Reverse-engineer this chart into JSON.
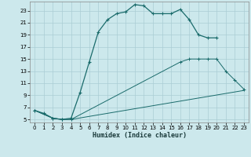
{
  "xlabel": "Humidex (Indice chaleur)",
  "background_color": "#cce8ec",
  "grid_color": "#aacdd4",
  "line_color": "#1a6b6b",
  "xlim": [
    -0.5,
    23.5
  ],
  "ylim": [
    4.5,
    24.5
  ],
  "yticks": [
    5,
    7,
    9,
    11,
    13,
    15,
    17,
    19,
    21,
    23
  ],
  "xticks": [
    0,
    1,
    2,
    3,
    4,
    5,
    6,
    7,
    8,
    9,
    10,
    11,
    12,
    13,
    14,
    15,
    16,
    17,
    18,
    19,
    20,
    21,
    22,
    23
  ],
  "lines": [
    {
      "x": [
        0,
        1,
        2,
        3,
        4,
        5,
        6,
        7,
        8,
        9,
        10,
        11,
        12,
        13,
        14,
        15,
        16,
        17,
        18,
        19,
        20
      ],
      "y": [
        6.5,
        6.0,
        5.2,
        5.0,
        5.2,
        9.5,
        14.5,
        19.5,
        21.5,
        22.5,
        22.8,
        24.0,
        23.8,
        22.5,
        22.5,
        22.5,
        23.2,
        21.5,
        19.0,
        18.5,
        18.5
      ]
    },
    {
      "x": [
        0,
        2,
        3,
        4,
        16,
        17,
        18,
        19,
        20,
        21,
        22,
        23
      ],
      "y": [
        6.5,
        5.2,
        5.0,
        5.0,
        14.5,
        15.0,
        15.0,
        15.0,
        15.0,
        13.0,
        11.5,
        10.0
      ]
    },
    {
      "x": [
        0,
        2,
        3,
        4,
        23
      ],
      "y": [
        6.5,
        5.2,
        5.0,
        5.0,
        9.8
      ]
    }
  ]
}
